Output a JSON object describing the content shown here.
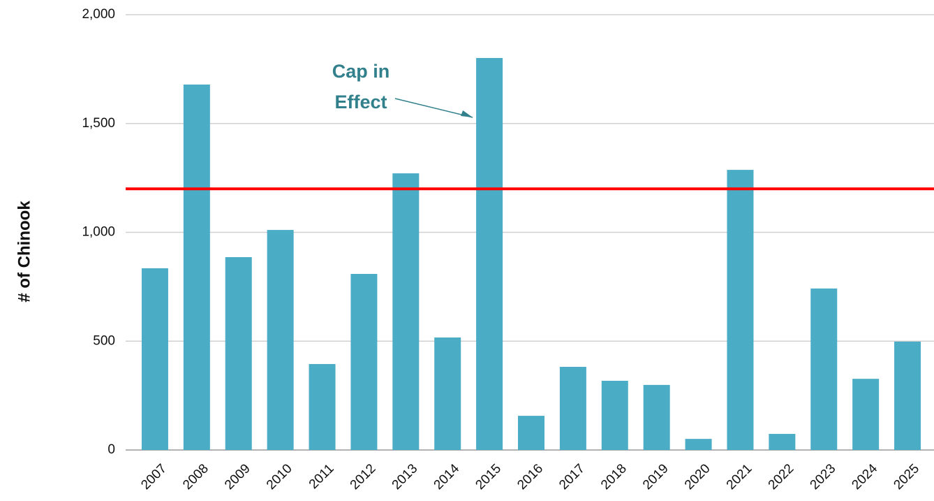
{
  "chart_data": {
    "type": "bar",
    "y_axis_label": "# of Chinook",
    "categories": [
      "2007",
      "2008",
      "2009",
      "2010",
      "2011",
      "2012",
      "2013",
      "2014",
      "2015",
      "2016",
      "2017",
      "2018",
      "2019",
      "2020",
      "2021",
      "2022",
      "2023",
      "2024",
      "2025"
    ],
    "values": [
      835,
      1679,
      886,
      1011,
      395,
      809,
      1271,
      517,
      1801,
      157,
      382,
      318,
      299,
      51,
      1287,
      74,
      742,
      327,
      498
    ],
    "color": "#4bacc6",
    "ylim": [
      0,
      2000
    ],
    "yticks": [
      0,
      500,
      {
        "value": 1000,
        "label": "1,000"
      },
      {
        "value": 1500,
        "label": "1,500"
      },
      {
        "value": 2000,
        "label": "2,000"
      }
    ],
    "grid": true,
    "reference_line": {
      "value": 1200,
      "color": "#ff0000"
    },
    "annotation": {
      "lines": [
        "Cap in",
        "Effect"
      ],
      "color": "#31808c",
      "category_index": 8
    }
  }
}
